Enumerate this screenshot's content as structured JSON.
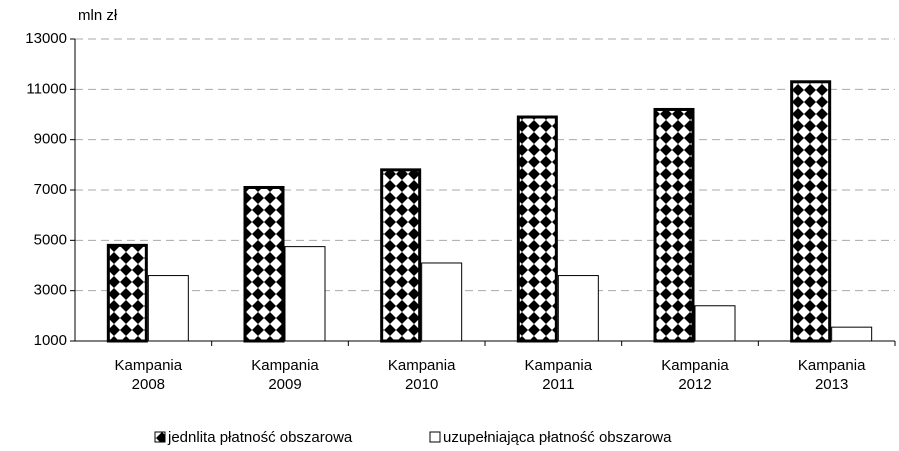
{
  "chart_data": {
    "type": "bar",
    "y_label": "mln zł",
    "categories": [
      "Kampania 2008",
      "Kampania 2009",
      "Kampania 2010",
      "Kampania 2011",
      "Kampania 2012",
      "Kampania 2013"
    ],
    "series": [
      {
        "name": "jednlita płatność obszarowa",
        "color": "#000000",
        "values": [
          4800,
          7100,
          7800,
          9900,
          10200,
          11300
        ]
      },
      {
        "name": "uzupełniająca płatność obszarowa",
        "color": "#ffffff",
        "values": [
          3600,
          4750,
          4100,
          3600,
          2400,
          1550
        ]
      }
    ],
    "ylim": [
      1000,
      13000
    ],
    "yticks": [
      1000,
      3000,
      5000,
      7000,
      9000,
      11000,
      13000
    ],
    "grid": true
  }
}
